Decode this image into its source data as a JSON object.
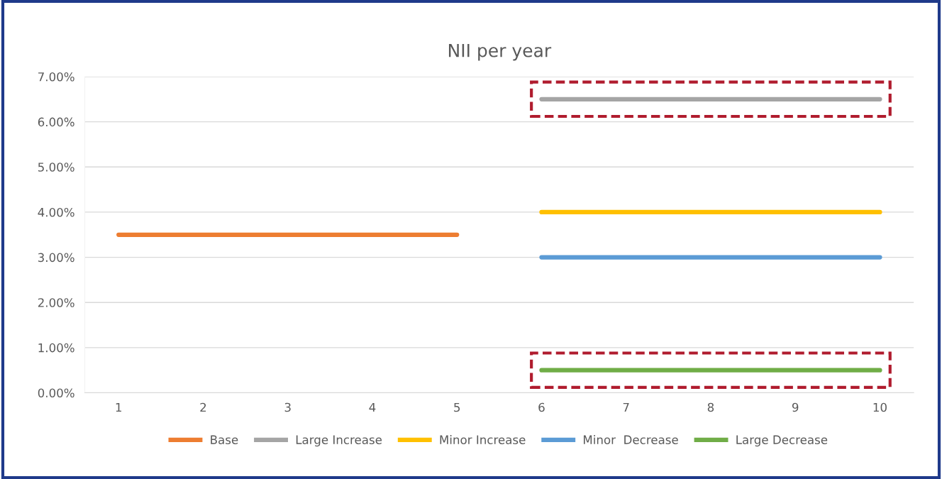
{
  "chart_data": {
    "type": "line",
    "title": "NII per year",
    "categories": [
      "1",
      "2",
      "3",
      "4",
      "5",
      "6",
      "7",
      "8",
      "9",
      "10"
    ],
    "series": [
      {
        "name": "Base",
        "color": "#ed7d31",
        "values": [
          3.5,
          3.5,
          3.5,
          3.5,
          3.5,
          null,
          null,
          null,
          null,
          null
        ]
      },
      {
        "name": "Large Increase",
        "color": "#a5a5a5",
        "values": [
          null,
          null,
          null,
          null,
          null,
          6.5,
          6.5,
          6.5,
          6.5,
          6.5
        ]
      },
      {
        "name": "Minor Increase",
        "color": "#ffc000",
        "values": [
          null,
          null,
          null,
          null,
          null,
          4.0,
          4.0,
          4.0,
          4.0,
          4.0
        ]
      },
      {
        "name": "Minor  Decrease",
        "color": "#5b9bd5",
        "values": [
          null,
          null,
          null,
          null,
          null,
          3.0,
          3.0,
          3.0,
          3.0,
          3.0
        ]
      },
      {
        "name": "Large Decrease",
        "color": "#70ad47",
        "values": [
          null,
          null,
          null,
          null,
          null,
          0.5,
          0.5,
          0.5,
          0.5,
          0.5
        ]
      }
    ],
    "ylim": [
      0,
      7
    ],
    "yticks": [
      {
        "value": 0,
        "label": "0.00%"
      },
      {
        "value": 1,
        "label": "1.00%"
      },
      {
        "value": 2,
        "label": "2.00%"
      },
      {
        "value": 3,
        "label": "3.00%"
      },
      {
        "value": 4,
        "label": "4.00%"
      },
      {
        "value": 5,
        "label": "5.00%"
      },
      {
        "value": 6,
        "label": "6.00%"
      },
      {
        "value": 7,
        "label": "7.00%"
      }
    ],
    "grid": "y",
    "legend": "bottom",
    "marker": "none",
    "line_style": "solid"
  }
}
